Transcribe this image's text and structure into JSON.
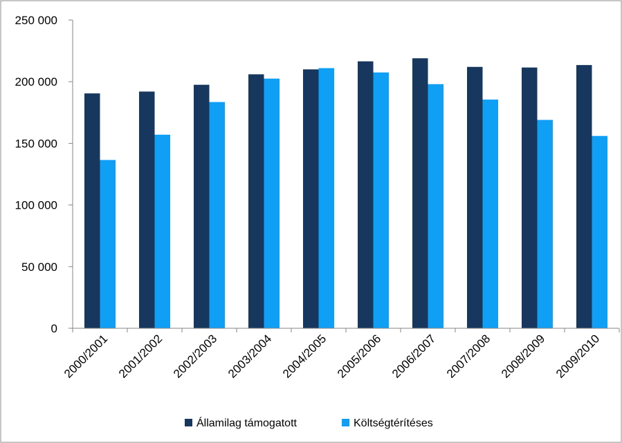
{
  "chart_data": {
    "type": "bar",
    "title": "",
    "xlabel": "",
    "ylabel": "",
    "categories": [
      "2000/2001",
      "2001/2002",
      "2002/2003",
      "2003/2004",
      "2004/2005",
      "2005/2006",
      "2006/2007",
      "2007/2008",
      "2008/2009",
      "2009/2010"
    ],
    "series": [
      {
        "name": "Államilag támogatott",
        "color": "#17375e",
        "values": [
          190500,
          192000,
          197500,
          206000,
          210000,
          216500,
          219000,
          212000,
          211500,
          213500
        ]
      },
      {
        "name": "Költségtérítéses",
        "color": "#0f9ff5",
        "values": [
          136500,
          157000,
          183500,
          202500,
          211000,
          207500,
          198000,
          185500,
          169000,
          156000
        ]
      }
    ],
    "ylim": [
      0,
      250000
    ],
    "yticks": [
      0,
      50000,
      100000,
      150000,
      200000,
      250000
    ],
    "ytick_labels": [
      "0",
      "50 000",
      "100 000",
      "150 000",
      "200 000",
      "250 000"
    ],
    "grid": {
      "horizontal": false,
      "vertical": false
    },
    "legend": {
      "position": "bottom"
    }
  }
}
